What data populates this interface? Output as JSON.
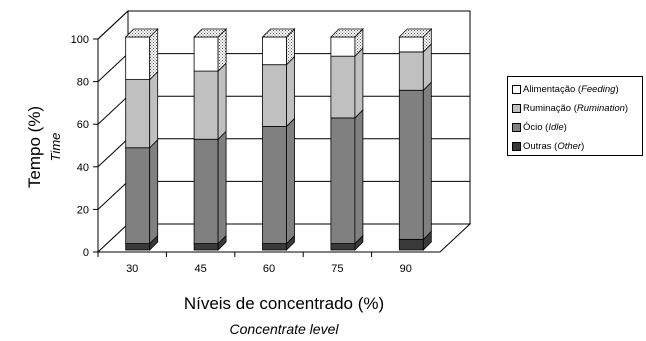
{
  "chart_data": {
    "type": "bar",
    "stacked": true,
    "three_d": true,
    "categories": [
      "30",
      "45",
      "60",
      "75",
      "90"
    ],
    "series": [
      {
        "key": "outras",
        "label": "Outras (",
        "label_en": "Other",
        "color": "#3a3a3a",
        "values": [
          3,
          3,
          3,
          3,
          5
        ]
      },
      {
        "key": "ocio",
        "label": "Ócio (",
        "label_en": "Idle",
        "color": "#808080",
        "values": [
          45,
          49,
          55,
          59,
          70
        ]
      },
      {
        "key": "ruminacao",
        "label": "Ruminação (",
        "label_en": "Rumination",
        "color": "#c0c0c0",
        "values": [
          32,
          32,
          29,
          29,
          18
        ]
      },
      {
        "key": "alimentacao",
        "label": "Alimentação (",
        "label_en": "Feeding",
        "color": "#ffffff",
        "values": [
          20,
          16,
          13,
          9,
          7
        ]
      }
    ],
    "ylabel": "Tempo (%)",
    "ylabel_en": "Time",
    "xlabel": "Níveis de concentrado (%)",
    "xlabel_en": "Concentrate level",
    "yticks": [
      "0",
      "20",
      "40",
      "60",
      "80",
      "100"
    ],
    "ylim": [
      0,
      100
    ],
    "grid": true,
    "legend_position": "right"
  }
}
